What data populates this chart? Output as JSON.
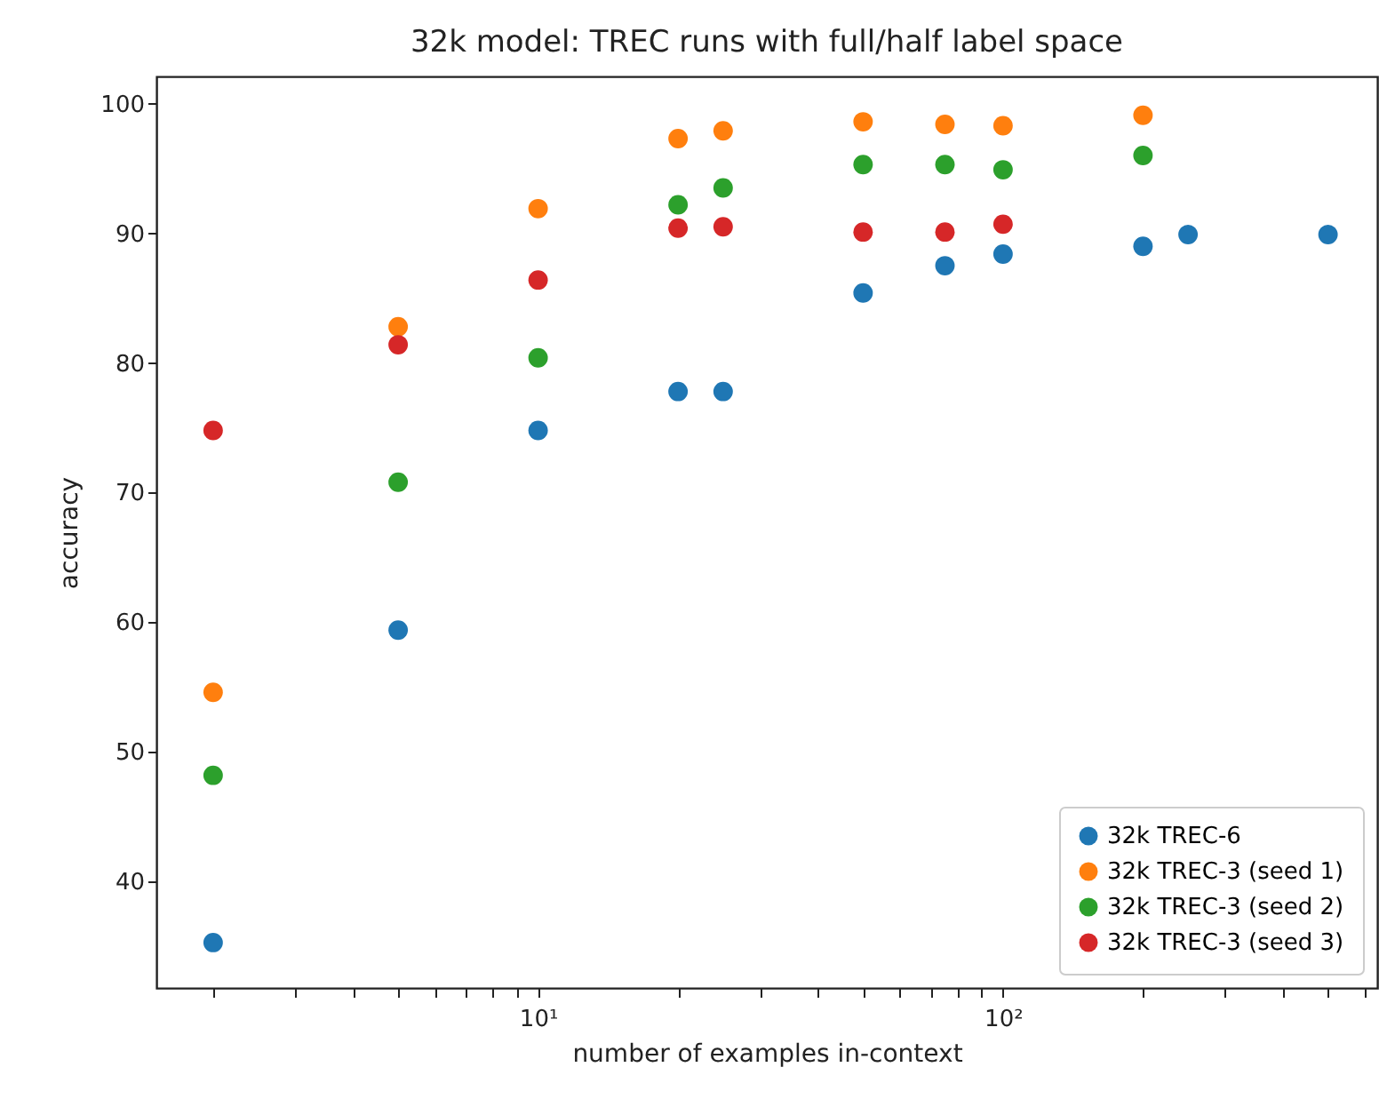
{
  "chart_data": {
    "type": "scatter",
    "title": "32k model: TREC runs with full/half label space",
    "xlabel": "number of examples in-context",
    "ylabel": "accuracy",
    "log": "x",
    "marker": "circle",
    "legend": "bottom right",
    "grid": false,
    "xlim": [
      1.51,
      638
    ],
    "ylim": [
      31.8,
      102.1
    ],
    "xticks": [
      {
        "value": 2,
        "label": null
      },
      {
        "value": 3,
        "label": null
      },
      {
        "value": 4,
        "label": null
      },
      {
        "value": 5,
        "label": null
      },
      {
        "value": 6,
        "label": null
      },
      {
        "value": 7,
        "label": null
      },
      {
        "value": 8,
        "label": null
      },
      {
        "value": 9,
        "label": null
      },
      {
        "value": 10,
        "label": "10¹"
      },
      {
        "value": 20,
        "label": null
      },
      {
        "value": 30,
        "label": null
      },
      {
        "value": 40,
        "label": null
      },
      {
        "value": 50,
        "label": null
      },
      {
        "value": 60,
        "label": null
      },
      {
        "value": 70,
        "label": null
      },
      {
        "value": 80,
        "label": null
      },
      {
        "value": 90,
        "label": null
      },
      {
        "value": 100,
        "label": "10²"
      },
      {
        "value": 200,
        "label": null
      },
      {
        "value": 300,
        "label": null
      },
      {
        "value": 400,
        "label": null
      },
      {
        "value": 500,
        "label": null
      },
      {
        "value": 600,
        "label": null
      }
    ],
    "yticks": [
      40,
      50,
      60,
      70,
      80,
      90,
      100
    ],
    "series": [
      {
        "name": "32k TREC-6",
        "color": "#1f77b4",
        "x": [
          2,
          5,
          10,
          20,
          25,
          50,
          75,
          100,
          200,
          250,
          500
        ],
        "values": [
          35.3,
          59.4,
          74.8,
          77.8,
          77.8,
          85.4,
          87.5,
          88.4,
          89.0,
          89.9,
          89.9
        ]
      },
      {
        "name": "32k TREC-3 (seed 1)",
        "color": "#ff7f0e",
        "x": [
          2,
          5,
          10,
          20,
          25,
          50,
          75,
          100,
          200
        ],
        "values": [
          54.6,
          82.8,
          91.9,
          97.3,
          97.9,
          98.6,
          98.4,
          98.3,
          99.1
        ]
      },
      {
        "name": "32k TREC-3 (seed 2)",
        "color": "#2ca02c",
        "x": [
          2,
          5,
          10,
          20,
          25,
          50,
          75,
          100,
          200
        ],
        "values": [
          48.2,
          70.8,
          80.4,
          92.2,
          93.5,
          95.3,
          95.3,
          94.9,
          96.0
        ]
      },
      {
        "name": "32k TREC-3 (seed 3)",
        "color": "#d62728",
        "x": [
          2,
          5,
          10,
          20,
          25,
          50,
          75,
          100
        ],
        "values": [
          74.8,
          81.4,
          86.4,
          90.4,
          90.5,
          90.1,
          90.1,
          90.7
        ]
      }
    ]
  }
}
